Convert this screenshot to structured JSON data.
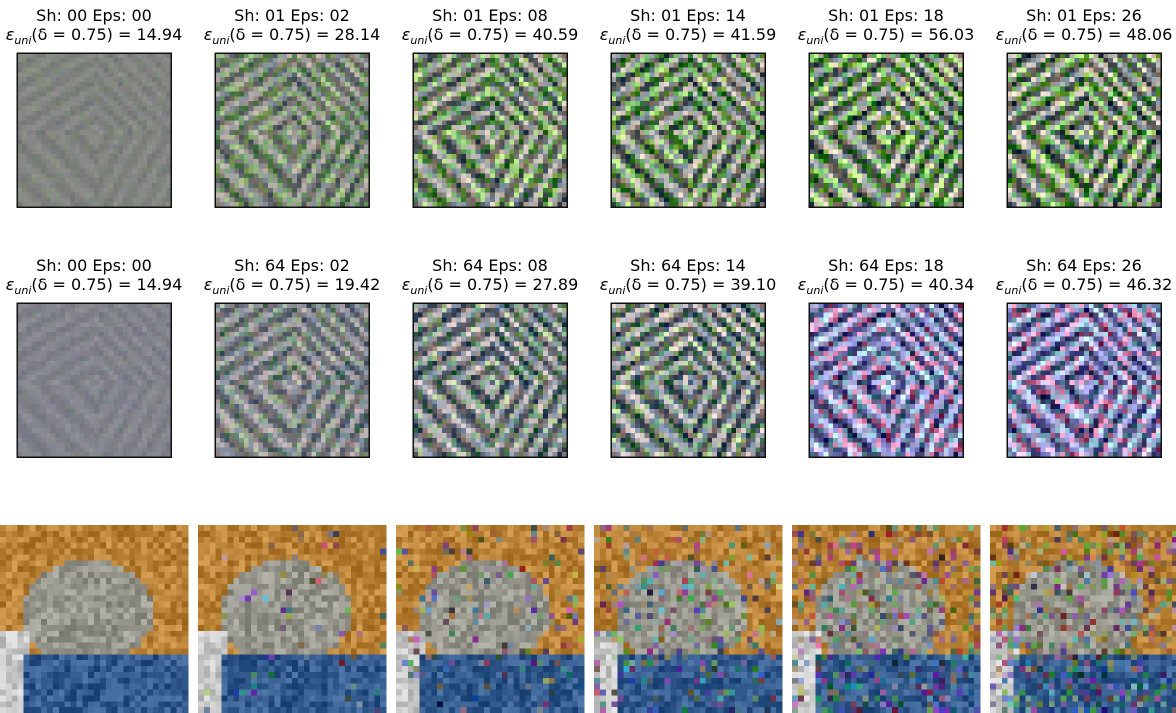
{
  "rows": [
    {
      "panels": [
        {
          "title": "Sh: 00 Eps: 00",
          "metric_symbol": "ε",
          "metric_subscript": "uni",
          "metric_rest": "(δ = 0.75) = 14.94"
        },
        {
          "title": "Sh: 01 Eps: 02",
          "metric_symbol": "ε",
          "metric_subscript": "uni",
          "metric_rest": "(δ = 0.75) = 28.14"
        },
        {
          "title": "Sh: 01 Eps: 08",
          "metric_symbol": "ε",
          "metric_subscript": "uni",
          "metric_rest": "(δ = 0.75) = 40.59"
        },
        {
          "title": "Sh: 01 Eps: 14",
          "metric_symbol": "ε",
          "metric_subscript": "uni",
          "metric_rest": "(δ = 0.75) = 41.59"
        },
        {
          "title": "Sh: 01 Eps: 18",
          "metric_symbol": "ε",
          "metric_subscript": "uni",
          "metric_rest": "(δ = 0.75) = 56.03"
        },
        {
          "title": "Sh: 01 Eps: 26",
          "metric_symbol": "ε",
          "metric_subscript": "uni",
          "metric_rest": "(δ = 0.75) = 48.06"
        }
      ]
    },
    {
      "panels": [
        {
          "title": "Sh: 00 Eps: 00",
          "metric_symbol": "ε",
          "metric_subscript": "uni",
          "metric_rest": "(δ = 0.75) = 14.94"
        },
        {
          "title": "Sh: 64 Eps: 02",
          "metric_symbol": "ε",
          "metric_subscript": "uni",
          "metric_rest": "(δ = 0.75) = 19.42"
        },
        {
          "title": "Sh: 64 Eps: 08",
          "metric_symbol": "ε",
          "metric_subscript": "uni",
          "metric_rest": "(δ = 0.75) = 27.89"
        },
        {
          "title": "Sh: 64 Eps: 14",
          "metric_symbol": "ε",
          "metric_subscript": "uni",
          "metric_rest": "(δ = 0.75) = 39.10"
        },
        {
          "title": "Sh: 64 Eps: 18",
          "metric_symbol": "ε",
          "metric_subscript": "uni",
          "metric_rest": "(δ = 0.75) = 40.34"
        },
        {
          "title": "Sh: 64 Eps: 26",
          "metric_symbol": "ε",
          "metric_subscript": "uni",
          "metric_rest": "(δ = 0.75) = 46.32"
        }
      ]
    }
  ]
}
